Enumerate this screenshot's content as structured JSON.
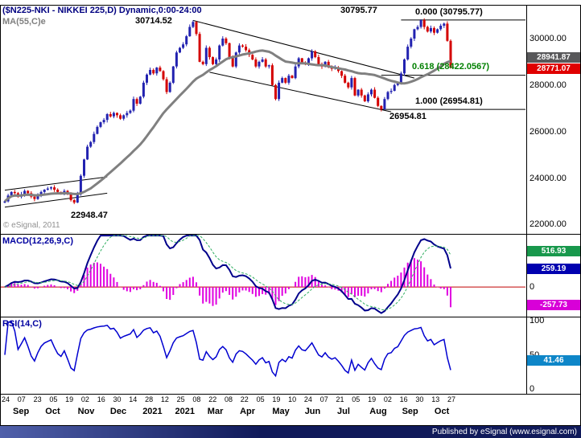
{
  "header": {
    "title": "($N225-NKI - NIKKEI 225,D) Dynamic,0:00-24:00",
    "ma_label": "MA(55,C)e"
  },
  "watermark": "© eSignal, 2011",
  "footer": {
    "text": "Published by eSignal (www.esignal.com)"
  },
  "chart_data": {
    "type": "candlestick",
    "title": "($N225-NKI - NIKKEI 225,D) Dynamic,0:00-24:00",
    "legend_position": "none",
    "grid": false,
    "colors": {
      "candle_up": "#2222b0",
      "candle_down": "#d40000",
      "ma": "#808080",
      "macd_line": "#00008b",
      "signal_line": "#2fae60",
      "histogram": "#e000e0",
      "rsi_line": "#0000d0",
      "zero_line": "#c00000",
      "fib_618_text": "#008000"
    },
    "x_axis": {
      "days": [
        "24",
        "07",
        "23",
        "05",
        "19",
        "02",
        "16",
        "30",
        "14",
        "28",
        "12",
        "25",
        "08",
        "22",
        "08",
        "22",
        "05",
        "19",
        "10",
        "24",
        "07",
        "21",
        "05",
        "19",
        "02",
        "16",
        "30",
        "13",
        "27"
      ],
      "months": [
        "Sep",
        "Oct",
        "Nov",
        "Dec",
        "2021",
        "2021",
        "Mar",
        "Apr",
        "May",
        "Jun",
        "Jul",
        "Aug",
        "Sep",
        "Oct"
      ]
    },
    "price_panel": {
      "ylim": [
        21600,
        31450
      ],
      "close": [
        23000,
        23250,
        23400,
        23350,
        23200,
        23300,
        23450,
        23350,
        23200,
        23100,
        23250,
        23400,
        23500,
        23550,
        23600,
        23500,
        23400,
        23350,
        23450,
        23300,
        23050,
        22948,
        23300,
        24100,
        24800,
        25350,
        25550,
        25900,
        26200,
        26400,
        26500,
        26750,
        26650,
        26800,
        26700,
        26550,
        26700,
        26800,
        26900,
        27400,
        27200,
        27500,
        28100,
        28450,
        28650,
        28500,
        28750,
        28600,
        28250,
        27700,
        28100,
        28800,
        29400,
        29600,
        29750,
        30100,
        30500,
        30714,
        30200,
        29000,
        28900,
        29600,
        29200,
        28900,
        29100,
        29700,
        30000,
        29800,
        29200,
        28800,
        29400,
        29700,
        29650,
        29500,
        29300,
        29100,
        28800,
        29000,
        29100,
        28800,
        28850,
        28000,
        27400,
        28100,
        28300,
        28100,
        28400,
        28300,
        28800,
        29150,
        28950,
        28900,
        29150,
        29450,
        29200,
        28900,
        28800,
        29000,
        28800,
        28700,
        28750,
        28600,
        28400,
        28100,
        27900,
        28300,
        27550,
        27800,
        27550,
        27300,
        27600,
        27800,
        27450,
        27100,
        26954,
        27400,
        27700,
        27750,
        28000,
        28100,
        28500,
        29100,
        29650,
        30000,
        30400,
        30500,
        30795,
        30500,
        30300,
        30450,
        30250,
        30400,
        30550,
        30640,
        29900,
        28771
      ],
      "ma_window": 27,
      "axis": {
        "ticks": [
          {
            "label": "30000.00",
            "value": 30000
          },
          {
            "label": "28000.00",
            "value": 28000
          },
          {
            "label": "26000.00",
            "value": 26000
          },
          {
            "label": "24000.00",
            "value": 24000
          },
          {
            "label": "22000.00",
            "value": 22000
          }
        ],
        "boxes": [
          {
            "label": "28941.87",
            "value": 28941.87,
            "color": "#58585a"
          },
          {
            "label": "28771.07",
            "value": 28771.07,
            "color": "#e00000"
          }
        ]
      },
      "annotations": {
        "high_feb": "30714.52",
        "high_sep": "30795.77",
        "low_oct": "22948.47",
        "low_aug": "26954.81",
        "fib_0": "0.000 (30795.77)",
        "fib_618": "0.618 (28422.0567)",
        "fib_100": "1.000 (26954.81)"
      },
      "fib_lines": [
        {
          "level": 0.0,
          "value": 30795.77,
          "i_start": 120
        },
        {
          "level": 0.618,
          "value": 28422.0567,
          "i_start": 114
        },
        {
          "level": 1.0,
          "value": 26954.81,
          "i_start": 114
        }
      ],
      "trendlines": [
        {
          "i1": 0,
          "p1": 23480,
          "i2": 31,
          "p2": 24050
        },
        {
          "i1": 0,
          "p1": 22750,
          "i2": 31,
          "p2": 23350
        },
        {
          "i1": 57,
          "p1": 30780,
          "i2": 124,
          "p2": 28300
        },
        {
          "i1": 62,
          "p1": 28550,
          "i2": 117,
          "p2": 26850
        }
      ]
    },
    "macd_panel": {
      "label": "MACD(12,26,9,C)",
      "current": {
        "macd": 259.19,
        "signal": 516.93,
        "histogram": -257.73
      },
      "axis": {
        "boxes": [
          {
            "label": "516.93",
            "value": 516.93,
            "color": "#18984c"
          },
          {
            "label": "259.19",
            "value": 259.19,
            "color": "#0000b0"
          },
          {
            "label": "-257.73",
            "value": -257.73,
            "color": "#d800d8"
          }
        ],
        "zero_label": "0"
      }
    },
    "rsi_panel": {
      "label": "RSI(14,C)",
      "current": 41.46,
      "axis": {
        "ticks": [
          {
            "label": "100",
            "value": 100
          },
          {
            "label": "50",
            "value": 50
          },
          {
            "label": "0",
            "value": 0
          }
        ],
        "box": {
          "label": "41.46",
          "value": 41.46,
          "color": "#0e86c8"
        }
      }
    }
  }
}
